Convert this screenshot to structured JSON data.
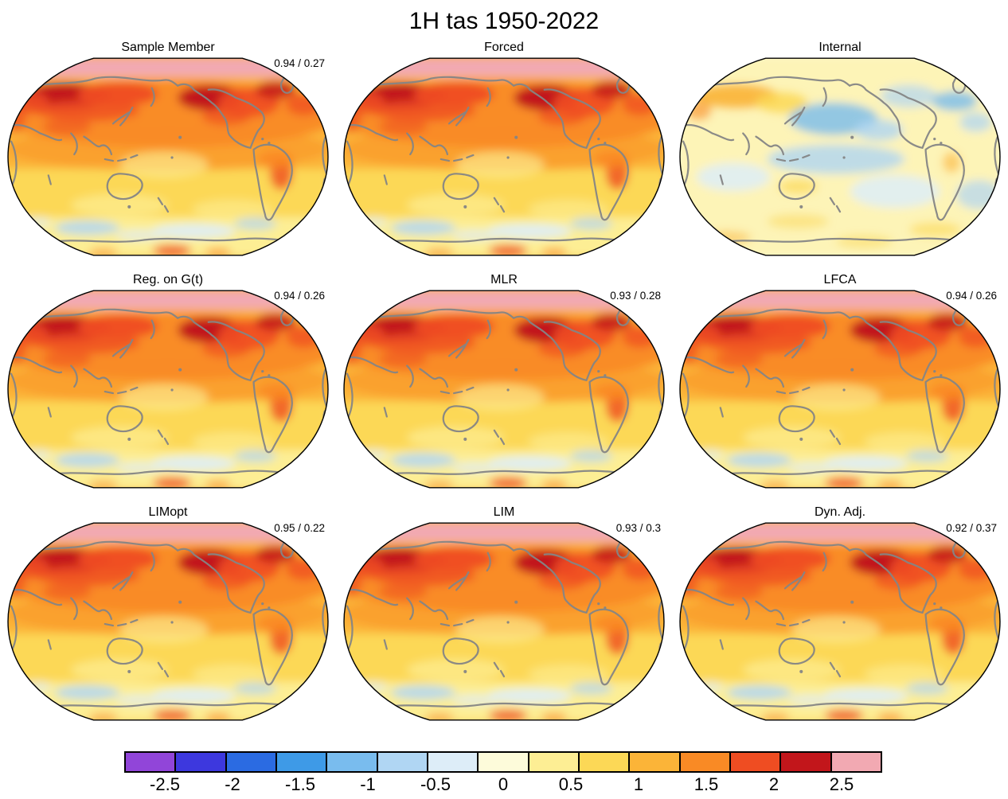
{
  "title": "1H tas 1950-2022",
  "chart_data": {
    "type": "heatmap",
    "title": "1H tas 1950-2022",
    "layout": "3x3 grid of global temperature-trend maps (Pacific-centered, Robinson-like projection) sharing one horizontal discrete colorbar at the bottom",
    "panels": [
      {
        "title": "Sample Member",
        "score": "0.94 / 0.27",
        "style": "warm"
      },
      {
        "title": "Forced",
        "score": "",
        "style": "warm"
      },
      {
        "title": "Internal",
        "score": "",
        "style": "cool"
      },
      {
        "title": "Reg. on G(t)",
        "score": "0.94 / 0.26",
        "style": "warm"
      },
      {
        "title": "MLR",
        "score": "0.93 / 0.28",
        "style": "warm"
      },
      {
        "title": "LFCA",
        "score": "0.94 / 0.26",
        "style": "warm"
      },
      {
        "title": "LIMopt",
        "score": "0.95 / 0.22",
        "style": "warm"
      },
      {
        "title": "LIM",
        "score": "0.93 / 0.3",
        "style": "warm"
      },
      {
        "title": "Dyn. Adj.",
        "score": "0.92 / 0.37",
        "style": "warm"
      }
    ],
    "colorbar": {
      "orientation": "horizontal",
      "min": -2.8,
      "max": 2.8,
      "colors": [
        "#9145d9",
        "#3d38de",
        "#2b6be2",
        "#3e9ae7",
        "#79bcee",
        "#b0d6f3",
        "#ddedf8",
        "#fdfbda",
        "#fdee94",
        "#fcd856",
        "#fbb438",
        "#f98a25",
        "#ef4d22",
        "#c2161b",
        "#f2a9b2"
      ],
      "ticks": [
        {
          "label": "-2.5",
          "value": -2.5
        },
        {
          "label": "-2",
          "value": -2
        },
        {
          "label": "-1.5",
          "value": -1.5
        },
        {
          "label": "-1",
          "value": -1
        },
        {
          "label": "-0.5",
          "value": -0.5
        },
        {
          "label": "0",
          "value": 0
        },
        {
          "label": "0.5",
          "value": 0.5
        },
        {
          "label": "1",
          "value": 1
        },
        {
          "label": "1.5",
          "value": 1.5
        },
        {
          "label": "2",
          "value": 2
        },
        {
          "label": "2.5",
          "value": 2.5
        }
      ]
    }
  }
}
